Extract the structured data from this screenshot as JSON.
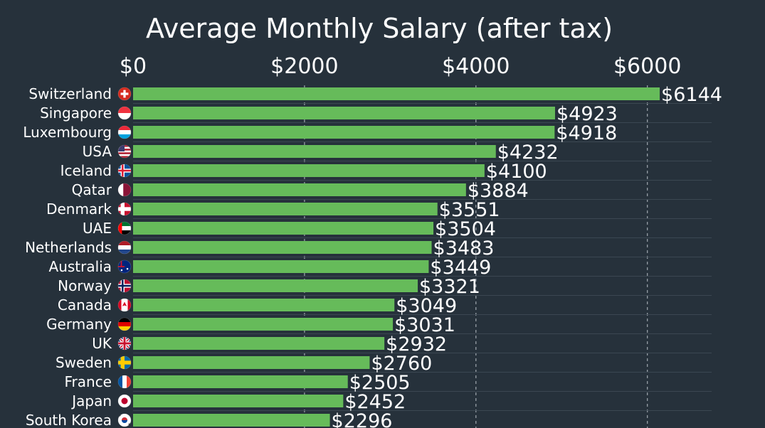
{
  "chart_data": {
    "type": "bar",
    "orientation": "horizontal",
    "title": "Average Monthly Salary (after tax)",
    "xlabel": "",
    "ylabel": "",
    "xlim": [
      0,
      6800
    ],
    "x_ticks": [
      0,
      2000,
      4000,
      6000
    ],
    "x_tick_labels": [
      "$0",
      "$2000",
      "$4000",
      "$6000"
    ],
    "grid": true,
    "value_prefix": "$",
    "categories": [
      "Switzerland",
      "Singapore",
      "Luxembourg",
      "USA",
      "Iceland",
      "Qatar",
      "Denmark",
      "UAE",
      "Netherlands",
      "Australia",
      "Norway",
      "Canada",
      "Germany",
      "UK",
      "Sweden",
      "France",
      "Japan",
      "South Korea"
    ],
    "flags": [
      "switzerland-flag-icon",
      "singapore-flag-icon",
      "luxembourg-flag-icon",
      "usa-flag-icon",
      "iceland-flag-icon",
      "qatar-flag-icon",
      "denmark-flag-icon",
      "uae-flag-icon",
      "netherlands-flag-icon",
      "australia-flag-icon",
      "norway-flag-icon",
      "canada-flag-icon",
      "germany-flag-icon",
      "uk-flag-icon",
      "sweden-flag-icon",
      "france-flag-icon",
      "japan-flag-icon",
      "south-korea-flag-icon"
    ],
    "values": [
      6144,
      4923,
      4918,
      4232,
      4100,
      3884,
      3551,
      3504,
      3483,
      3449,
      3321,
      3049,
      3031,
      2932,
      2760,
      2505,
      2452,
      2296
    ],
    "value_labels": [
      "$6144",
      "$4923",
      "$4918",
      "$4232",
      "$4100",
      "$3884",
      "$3551",
      "$3504",
      "$3483",
      "$3449",
      "$3321",
      "$3049",
      "$3031",
      "$2932",
      "$2760",
      "$2505",
      "$2452",
      "$2296"
    ]
  },
  "colors": {
    "background": "#26313b",
    "bar": "#66bb5a",
    "text": "#ffffff",
    "grid": "#c9d0d6",
    "row_line": "#3b4752"
  }
}
